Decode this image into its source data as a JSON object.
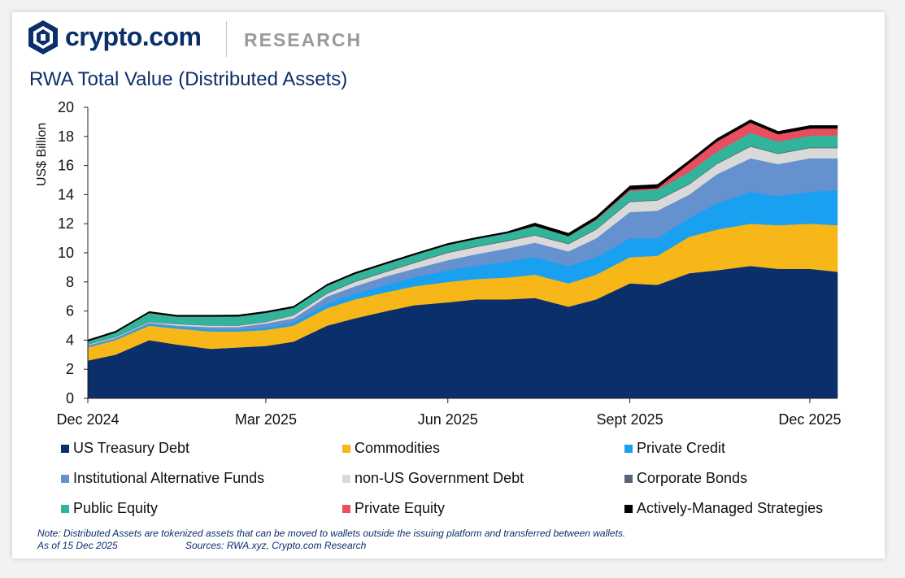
{
  "header": {
    "brand": "crypto.com",
    "section": "RESEARCH"
  },
  "chart_data": {
    "type": "area",
    "title": "RWA Total Value (Distributed Assets)",
    "ylabel": "US$ Billion",
    "xlabel": "",
    "ylim": [
      0,
      20
    ],
    "yticks": [
      0,
      2,
      4,
      6,
      8,
      10,
      12,
      14,
      16,
      18,
      20
    ],
    "xtick_labels": [
      "Dec 2024",
      "Mar 2025",
      "Jun 2025",
      "Sept 2025",
      "Dec 2025"
    ],
    "stacked": true,
    "grid": false,
    "legend_position": "bottom",
    "x": [
      "2024-12-01",
      "2024-12-15",
      "2025-01-01",
      "2025-01-15",
      "2025-02-01",
      "2025-02-15",
      "2025-03-01",
      "2025-03-15",
      "2025-04-01",
      "2025-04-15",
      "2025-05-01",
      "2025-05-15",
      "2025-06-01",
      "2025-06-15",
      "2025-07-01",
      "2025-07-15",
      "2025-08-01",
      "2025-08-15",
      "2025-09-01",
      "2025-09-15",
      "2025-10-01",
      "2025-10-15",
      "2025-11-01",
      "2025-11-15",
      "2025-12-01",
      "2025-12-15"
    ],
    "series": [
      {
        "name": "US Treasury Debt",
        "color": "#0b2f6b",
        "values": [
          2.6,
          3.0,
          4.0,
          3.7,
          3.4,
          3.5,
          3.6,
          3.9,
          5.0,
          5.5,
          6.0,
          6.4,
          6.6,
          6.8,
          6.8,
          6.9,
          6.3,
          6.8,
          7.9,
          7.8,
          8.6,
          8.8,
          9.1,
          8.9,
          8.9,
          8.7
        ]
      },
      {
        "name": "Commodities",
        "color": "#f7b718",
        "values": [
          0.9,
          1.0,
          1.0,
          1.1,
          1.2,
          1.1,
          1.1,
          1.1,
          1.2,
          1.3,
          1.3,
          1.3,
          1.4,
          1.4,
          1.5,
          1.6,
          1.6,
          1.7,
          1.8,
          2.0,
          2.5,
          2.8,
          2.9,
          3.0,
          3.1,
          3.2
        ]
      },
      {
        "name": "Private Credit",
        "color": "#1aa0f0",
        "values": [
          0.05,
          0.05,
          0.1,
          0.1,
          0.1,
          0.1,
          0.15,
          0.2,
          0.3,
          0.4,
          0.5,
          0.6,
          0.8,
          0.9,
          1.1,
          1.2,
          1.2,
          1.2,
          1.3,
          1.2,
          1.3,
          1.8,
          2.2,
          2.0,
          2.2,
          2.4
        ]
      },
      {
        "name": "Institutional Alternative Funds",
        "color": "#6591cf",
        "values": [
          0.1,
          0.1,
          0.1,
          0.1,
          0.2,
          0.2,
          0.3,
          0.3,
          0.5,
          0.5,
          0.6,
          0.6,
          0.7,
          0.8,
          0.9,
          1.0,
          1.0,
          1.3,
          1.8,
          1.9,
          1.6,
          2.0,
          2.3,
          2.2,
          2.3,
          2.2
        ]
      },
      {
        "name": "non-US Government Debt",
        "color": "#d9d9d9",
        "values": [
          0.05,
          0.05,
          0.05,
          0.1,
          0.1,
          0.1,
          0.1,
          0.2,
          0.2,
          0.3,
          0.3,
          0.4,
          0.5,
          0.5,
          0.5,
          0.5,
          0.5,
          0.6,
          0.7,
          0.7,
          0.7,
          0.7,
          0.8,
          0.7,
          0.7,
          0.7
        ]
      },
      {
        "name": "Corporate Bonds",
        "color": "#5a6573",
        "values": [
          0.02,
          0.02,
          0.02,
          0.02,
          0.02,
          0.03,
          0.03,
          0.03,
          0.05,
          0.05,
          0.05,
          0.05,
          0.05,
          0.05,
          0.05,
          0.05,
          0.05,
          0.05,
          0.05,
          0.05,
          0.05,
          0.05,
          0.05,
          0.05,
          0.05,
          0.05
        ]
      },
      {
        "name": "Public Equity",
        "color": "#32b49a",
        "values": [
          0.2,
          0.3,
          0.6,
          0.5,
          0.6,
          0.6,
          0.6,
          0.5,
          0.5,
          0.5,
          0.5,
          0.5,
          0.5,
          0.5,
          0.5,
          0.6,
          0.5,
          0.6,
          0.7,
          0.7,
          0.8,
          0.8,
          0.9,
          0.8,
          0.8,
          0.8
        ]
      },
      {
        "name": "Private Equity",
        "color": "#e84e5f",
        "values": [
          0,
          0,
          0,
          0,
          0,
          0,
          0,
          0,
          0,
          0,
          0,
          0,
          0,
          0,
          0,
          0,
          0,
          0.05,
          0.1,
          0.1,
          0.6,
          0.7,
          0.7,
          0.5,
          0.5,
          0.5
        ]
      },
      {
        "name": "Actively-Managed Strategies",
        "color": "#000000",
        "values": [
          0.1,
          0.1,
          0.1,
          0.1,
          0.1,
          0.1,
          0.1,
          0.1,
          0.1,
          0.1,
          0.1,
          0.1,
          0.1,
          0.1,
          0.1,
          0.2,
          0.2,
          0.2,
          0.25,
          0.25,
          0.2,
          0.2,
          0.2,
          0.2,
          0.2,
          0.2
        ]
      }
    ]
  },
  "footer": {
    "note": "Note: Distributed Assets are tokenized assets that can be moved to wallets outside the issuing platform and transferred between wallets.",
    "as_of": "As of 15 Dec 2025",
    "sources": "Sources: RWA.xyz, Crypto.com Research"
  }
}
